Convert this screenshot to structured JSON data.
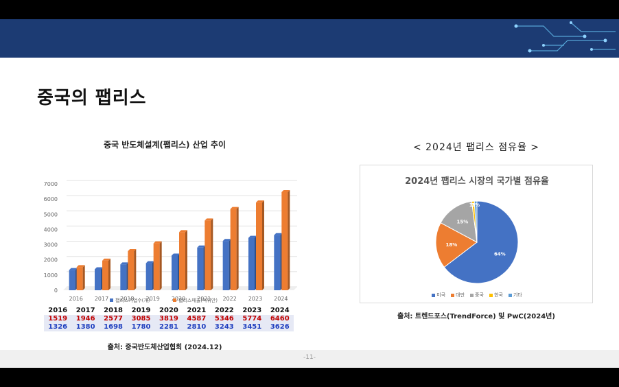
{
  "slide": {
    "title": "중국의 팹리스",
    "page_number": "-11-"
  },
  "colors": {
    "banner": "#1c3b73",
    "bar_series_1": "#4472c4",
    "bar_series_2": "#ed7d31",
    "pie_us": "#4472c4",
    "pie_taiwan": "#ed7d31",
    "pie_china": "#a5a5a5",
    "pie_korea": "#ffc000",
    "pie_other": "#5b9bd5"
  },
  "bar_section": {
    "title": "중국 반도체설계(팹리스) 산업 추이",
    "source": "출처: 중국반도체산업협회 (2024.12)",
    "table": {
      "years": [
        "2016",
        "2017",
        "2018",
        "2019",
        "2020",
        "2021",
        "2022",
        "2023",
        "2024"
      ],
      "row1": [
        "1519",
        "1946",
        "2577",
        "3085",
        "3819",
        "4587",
        "5346",
        "5774",
        "6460"
      ],
      "row2": [
        "1326",
        "1380",
        "1698",
        "1780",
        "2281",
        "2810",
        "3243",
        "3451",
        "3626"
      ]
    }
  },
  "pie_section": {
    "heading": "< 2024년 팹리스 점유율 >",
    "source": "출처: 트렌드포스(TrendForce) 및 PwC(2024년)"
  },
  "chart_data": [
    {
      "type": "bar",
      "categories": [
        "2016",
        "2017",
        "2018",
        "2019",
        "2020",
        "2021",
        "2022",
        "2023",
        "2024"
      ],
      "series": [
        {
          "name": "팹리스기업수(개)",
          "values": [
            1326,
            1380,
            1698,
            1780,
            2281,
            2810,
            3243,
            3451,
            3626
          ]
        },
        {
          "name": "팹리스매출(억위안)",
          "values": [
            1519,
            1946,
            2577,
            3085,
            3819,
            4587,
            5346,
            5774,
            6460
          ]
        }
      ],
      "ylim": [
        0,
        7000
      ],
      "yticks": [
        0,
        1000,
        2000,
        3000,
        4000,
        5000,
        6000,
        7000
      ],
      "grid": true,
      "legend": "bottom"
    },
    {
      "type": "pie",
      "title": "2024년 팹리스 시장의 국가별 점유율",
      "categories": [
        "미국",
        "대만",
        "중국",
        "한국",
        "기타"
      ],
      "values": [
        64,
        18,
        15,
        1,
        1
      ],
      "labels": [
        "64%",
        "18%",
        "15%",
        "1%",
        "1%"
      ],
      "legend": "bottom"
    }
  ]
}
